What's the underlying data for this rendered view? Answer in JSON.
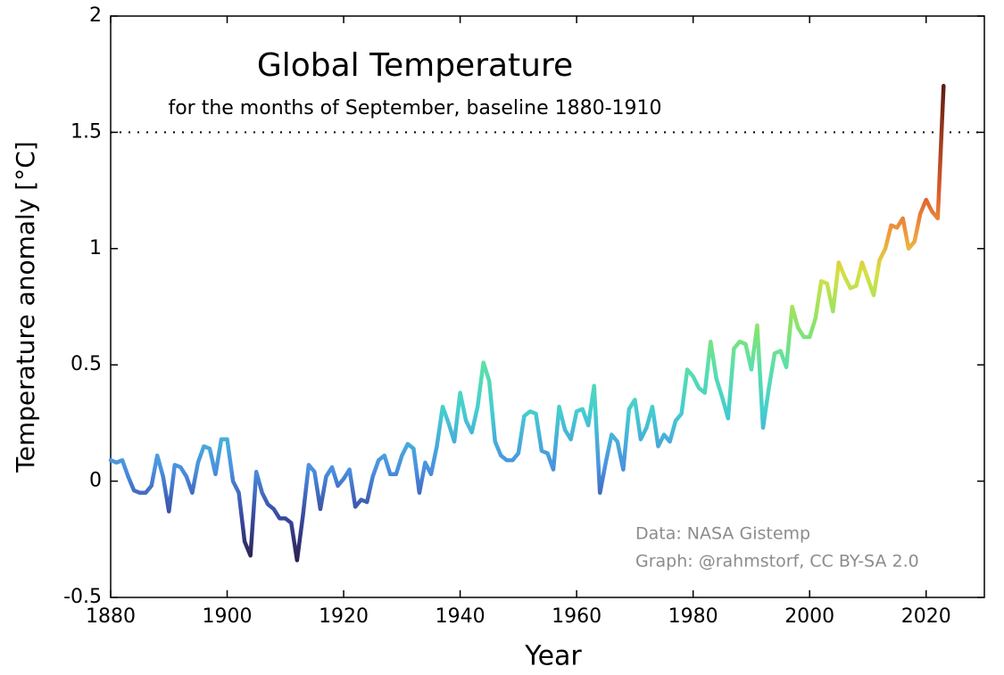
{
  "chart_data": {
    "type": "line",
    "title": "Global Temperature",
    "subtitle": "for the months of September, baseline 1880-1910",
    "x_label": "Year",
    "y_label": "Temperature anomaly [°C]",
    "annotations": [
      "Data: NASA Gistemp",
      "Graph: @rahmstorf, CC BY-SA 2.0"
    ],
    "reference_line": 1.5,
    "xlim": [
      1880,
      2030
    ],
    "xticks": [
      1880,
      1900,
      1920,
      1940,
      1960,
      1980,
      2000,
      2020
    ],
    "ylim": [
      -0.5,
      2
    ],
    "yticks": [
      -0.5,
      0,
      0.5,
      1,
      1.5,
      2
    ],
    "colormap": [
      {
        "value": -0.35,
        "color": "#2b1f4e"
      },
      {
        "value": -0.15,
        "color": "#3a4aa0"
      },
      {
        "value": 0.05,
        "color": "#4a8fe0"
      },
      {
        "value": 0.3,
        "color": "#44cdd0"
      },
      {
        "value": 0.5,
        "color": "#5ce0a8"
      },
      {
        "value": 0.65,
        "color": "#84e470"
      },
      {
        "value": 0.9,
        "color": "#d6e042"
      },
      {
        "value": 1.05,
        "color": "#f0a040"
      },
      {
        "value": 1.25,
        "color": "#dc5a2c"
      },
      {
        "value": 1.7,
        "color": "#5e1c12"
      }
    ],
    "x": [
      1880,
      1881,
      1882,
      1883,
      1884,
      1885,
      1886,
      1887,
      1888,
      1889,
      1890,
      1891,
      1892,
      1893,
      1894,
      1895,
      1896,
      1897,
      1898,
      1899,
      1900,
      1901,
      1902,
      1903,
      1904,
      1905,
      1906,
      1907,
      1908,
      1909,
      1910,
      1911,
      1912,
      1913,
      1914,
      1915,
      1916,
      1917,
      1918,
      1919,
      1920,
      1921,
      1922,
      1923,
      1924,
      1925,
      1926,
      1927,
      1928,
      1929,
      1930,
      1931,
      1932,
      1933,
      1934,
      1935,
      1936,
      1937,
      1938,
      1939,
      1940,
      1941,
      1942,
      1943,
      1944,
      1945,
      1946,
      1947,
      1948,
      1949,
      1950,
      1951,
      1952,
      1953,
      1954,
      1955,
      1956,
      1957,
      1958,
      1959,
      1960,
      1961,
      1962,
      1963,
      1964,
      1965,
      1966,
      1967,
      1968,
      1969,
      1970,
      1971,
      1972,
      1973,
      1974,
      1975,
      1976,
      1977,
      1978,
      1979,
      1980,
      1981,
      1982,
      1983,
      1984,
      1985,
      1986,
      1987,
      1988,
      1989,
      1990,
      1991,
      1992,
      1993,
      1994,
      1995,
      1996,
      1997,
      1998,
      1999,
      2000,
      2001,
      2002,
      2003,
      2004,
      2005,
      2006,
      2007,
      2008,
      2009,
      2010,
      2011,
      2012,
      2013,
      2014,
      2015,
      2016,
      2017,
      2018,
      2019,
      2020,
      2021,
      2022,
      2023
    ],
    "values": [
      0.09,
      0.08,
      0.09,
      0.02,
      -0.04,
      -0.05,
      -0.05,
      -0.02,
      0.11,
      0.02,
      -0.13,
      0.07,
      0.06,
      0.02,
      -0.05,
      0.08,
      0.15,
      0.14,
      0.03,
      0.18,
      0.18,
      0.0,
      -0.05,
      -0.26,
      -0.32,
      0.04,
      -0.05,
      -0.1,
      -0.12,
      -0.16,
      -0.16,
      -0.18,
      -0.34,
      -0.15,
      0.07,
      0.04,
      -0.12,
      0.02,
      0.06,
      -0.02,
      0.01,
      0.05,
      -0.11,
      -0.08,
      -0.09,
      0.02,
      0.09,
      0.11,
      0.03,
      0.03,
      0.11,
      0.16,
      0.14,
      -0.05,
      0.08,
      0.03,
      0.15,
      0.32,
      0.25,
      0.17,
      0.38,
      0.26,
      0.21,
      0.32,
      0.51,
      0.43,
      0.17,
      0.11,
      0.09,
      0.09,
      0.12,
      0.28,
      0.3,
      0.29,
      0.13,
      0.12,
      0.05,
      0.32,
      0.22,
      0.18,
      0.3,
      0.31,
      0.24,
      0.41,
      -0.05,
      0.08,
      0.2,
      0.17,
      0.05,
      0.31,
      0.35,
      0.18,
      0.23,
      0.32,
      0.15,
      0.2,
      0.17,
      0.26,
      0.29,
      0.48,
      0.45,
      0.4,
      0.38,
      0.6,
      0.44,
      0.36,
      0.27,
      0.57,
      0.6,
      0.59,
      0.48,
      0.67,
      0.23,
      0.4,
      0.55,
      0.56,
      0.49,
      0.75,
      0.66,
      0.62,
      0.62,
      0.7,
      0.86,
      0.85,
      0.73,
      0.94,
      0.88,
      0.83,
      0.84,
      0.94,
      0.87,
      0.8,
      0.95,
      1.0,
      1.1,
      1.09,
      1.13,
      1.0,
      1.03,
      1.15,
      1.21,
      1.16,
      1.13,
      1.7
    ]
  }
}
